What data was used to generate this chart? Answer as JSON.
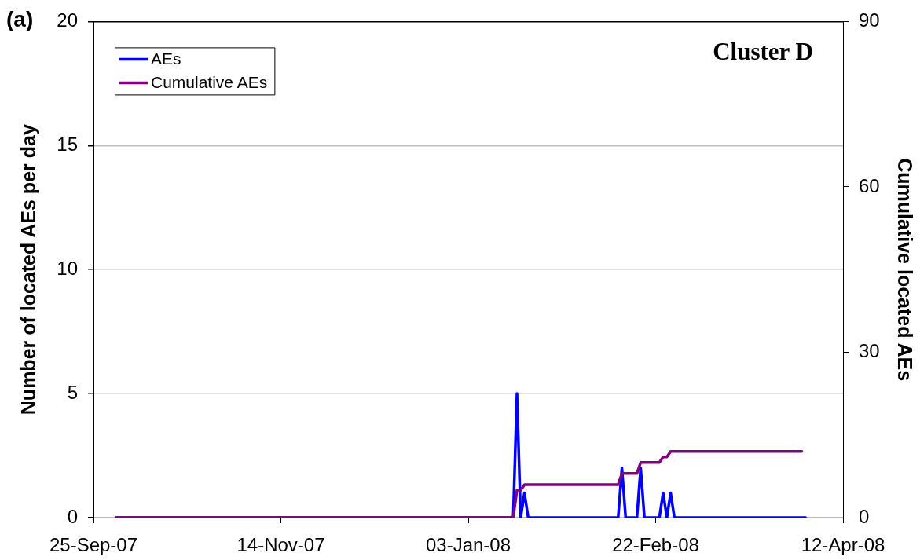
{
  "chart_data": {
    "type": "line",
    "title": "Cluster D",
    "ylabel": "Number of located AEs per day",
    "y2label": "Cumulative located AEs",
    "annotations": [
      "(a)"
    ],
    "series": [
      {
        "name": "AEs",
        "color": "#0000ff",
        "x": [
          "2007-10-01",
          "2008-01-15",
          "2008-01-16",
          "2008-01-17",
          "2008-01-18",
          "2008-01-19",
          "2008-02-12",
          "2008-02-13",
          "2008-02-14",
          "2008-02-17",
          "2008-02-18",
          "2008-02-19",
          "2008-02-23",
          "2008-02-24",
          "2008-02-25",
          "2008-02-26",
          "2008-02-27",
          "2008-04-02"
        ],
        "values": [
          0,
          0,
          5,
          0,
          1,
          0,
          0,
          2,
          0,
          0,
          2,
          0,
          0,
          1,
          0,
          1,
          0,
          0
        ]
      },
      {
        "name": "Cumulative AEs",
        "color": "#800080",
        "axis": "y2",
        "x": [
          "2007-10-01",
          "2008-01-15",
          "2008-01-16",
          "2008-01-17",
          "2008-01-18",
          "2008-02-12",
          "2008-02-13",
          "2008-02-17",
          "2008-02-18",
          "2008-02-23",
          "2008-02-24",
          "2008-02-25",
          "2008-02-26",
          "2008-04-01"
        ],
        "values": [
          0,
          0,
          5,
          5,
          6,
          6,
          8,
          8,
          10,
          10,
          11,
          11,
          12,
          12
        ]
      }
    ],
    "xlim": [
      "2007-09-25",
      "2008-04-12"
    ],
    "xticks": [
      {
        "value": "2007-09-25",
        "label": "25-Sep-07"
      },
      {
        "value": "2007-11-14",
        "label": "14-Nov-07"
      },
      {
        "value": "2008-01-03",
        "label": "03-Jan-08"
      },
      {
        "value": "2008-02-22",
        "label": "22-Feb-08"
      },
      {
        "value": "2008-04-12",
        "label": "12-Apr-08"
      }
    ],
    "ylim": [
      0,
      20
    ],
    "yticks": [
      0,
      5,
      10,
      15,
      20
    ],
    "y2lim": [
      0,
      90
    ],
    "y2ticks": [
      0,
      30,
      60,
      90
    ],
    "grid": "y",
    "legend": "top left",
    "marker": "none",
    "line_style": "solid"
  }
}
